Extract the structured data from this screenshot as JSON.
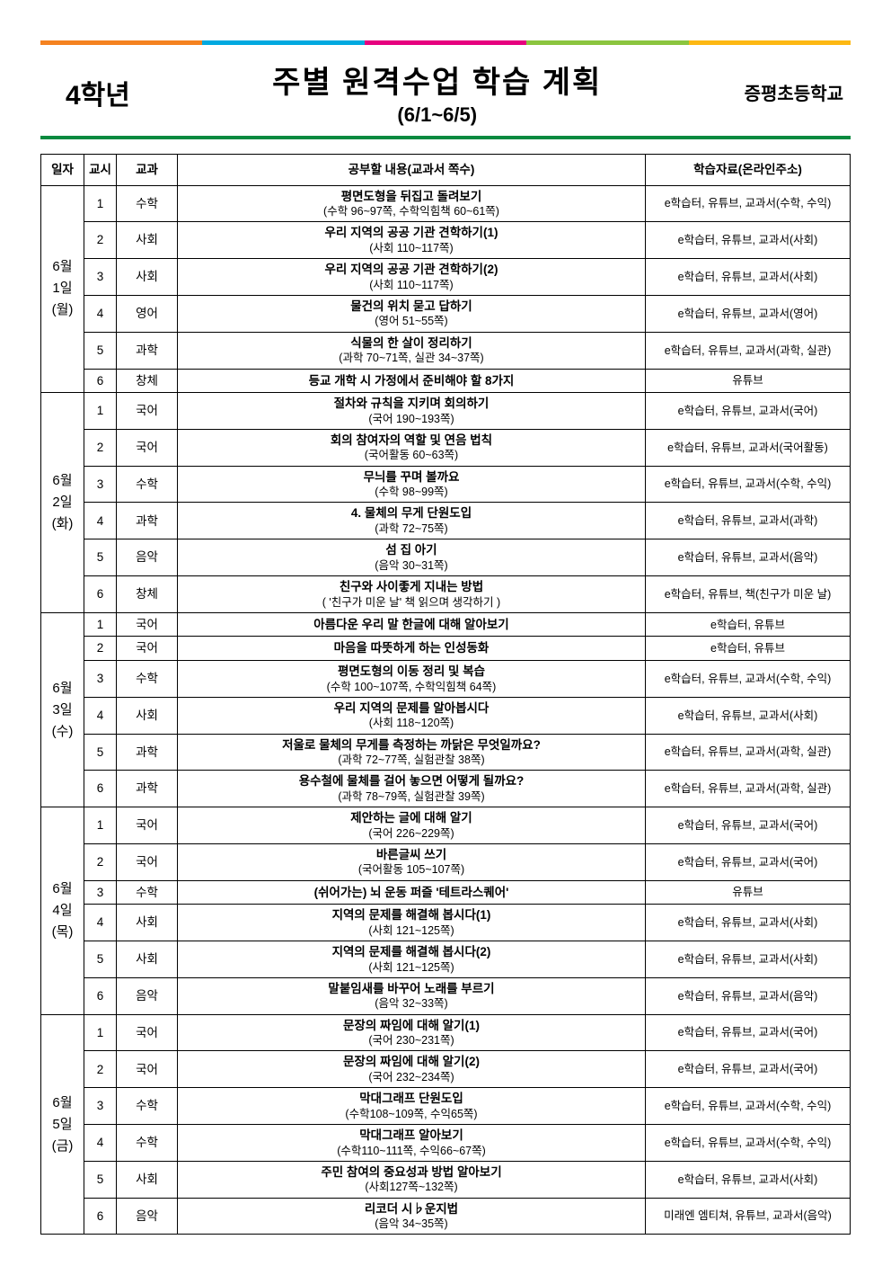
{
  "topbar_colors": [
    "#f58220",
    "#00a9e0",
    "#e6007e",
    "#8bc53f",
    "#fdb813"
  ],
  "divider_color": "#088a3f",
  "grade": "4학년",
  "title": "주별 원격수업 학습 계획",
  "date_range": "(6/1~6/5)",
  "school": "증평초등학교",
  "headers": {
    "date": "일자",
    "period": "교시",
    "subject": "교과",
    "content": "공부할 내용(교과서 쪽수)",
    "resource": "학습자료(온라인주소)"
  },
  "days": [
    {
      "date_lines": [
        "6월",
        "1일",
        "(월)"
      ],
      "rows": [
        {
          "period": "1",
          "subj": "수학",
          "main": "평면도형을 뒤집고 돌려보기",
          "sub": "(수학 96~97쪽, 수학익힘책 60~61쪽)",
          "res": "e학습터, 유튜브, 교과서(수학, 수익)"
        },
        {
          "period": "2",
          "subj": "사회",
          "main": "우리 지역의 공공 기관 견학하기(1)",
          "sub": "(사회 110~117쪽)",
          "res": "e학습터, 유튜브, 교과서(사회)"
        },
        {
          "period": "3",
          "subj": "사회",
          "main": "우리 지역의 공공 기관 견학하기(2)",
          "sub": "(사회 110~117쪽)",
          "res": "e학습터, 유튜브, 교과서(사회)"
        },
        {
          "period": "4",
          "subj": "영어",
          "main": "물건의 위치 묻고 답하기",
          "sub": "(영어 51~55쪽)",
          "res": "e학습터, 유튜브, 교과서(영어)"
        },
        {
          "period": "5",
          "subj": "과학",
          "main": "식물의 한 살이 정리하기",
          "sub": "(과학 70~71쪽, 실관 34~37쪽)",
          "res": "e학습터, 유튜브, 교과서(과학, 실관)"
        },
        {
          "period": "6",
          "subj": "창체",
          "main": "등교 개학 시 가정에서 준비해야 할 8가지",
          "sub": "",
          "res": "유튜브"
        }
      ]
    },
    {
      "date_lines": [
        "6월",
        "2일",
        "(화)"
      ],
      "rows": [
        {
          "period": "1",
          "subj": "국어",
          "main": "절차와 규칙을 지키며 회의하기",
          "sub": "(국어 190~193쪽)",
          "res": "e학습터, 유튜브, 교과서(국어)"
        },
        {
          "period": "2",
          "subj": "국어",
          "main": "회의 참여자의 역할 및 연음 법칙",
          "sub": "(국어활동 60~63쪽)",
          "res": "e학습터, 유튜브, 교과서(국어활동)"
        },
        {
          "period": "3",
          "subj": "수학",
          "main": "무늬를 꾸며 볼까요",
          "sub": "(수학 98~99쪽)",
          "res": "e학습터, 유튜브, 교과서(수학, 수익)"
        },
        {
          "period": "4",
          "subj": "과학",
          "main": "4. 물체의 무게 단원도입",
          "sub": "(과학 72~75쪽)",
          "res": "e학습터, 유튜브, 교과서(과학)"
        },
        {
          "period": "5",
          "subj": "음악",
          "main": "섬 집 아기",
          "sub": "(음악 30~31쪽)",
          "res": "e학습터, 유튜브, 교과서(음악)"
        },
        {
          "period": "6",
          "subj": "창체",
          "main": "친구와 사이좋게 지내는 방법",
          "sub": "( '친구가 미운 날' 책 읽으며 생각하기 )",
          "res": "e학습터, 유튜브, 책(친구가 미운 날)"
        }
      ]
    },
    {
      "date_lines": [
        "6월",
        "3일",
        "(수)"
      ],
      "rows": [
        {
          "period": "1",
          "subj": "국어",
          "main": "아름다운 우리 말 한글에 대해 알아보기",
          "sub": "",
          "res": "e학습터, 유튜브"
        },
        {
          "period": "2",
          "subj": "국어",
          "main": "마음을 따뜻하게 하는 인성동화",
          "sub": "",
          "res": "e학습터, 유튜브"
        },
        {
          "period": "3",
          "subj": "수학",
          "main": "평면도형의 이동 정리 및 복습",
          "sub": "(수학 100~107쪽, 수학익힘책 64쪽)",
          "res": "e학습터, 유튜브, 교과서(수학, 수익)"
        },
        {
          "period": "4",
          "subj": "사회",
          "main": "우리 지역의 문제를 알아봅시다",
          "sub": "(사회 118~120쪽)",
          "res": "e학습터, 유튜브, 교과서(사회)"
        },
        {
          "period": "5",
          "subj": "과학",
          "main": "저울로 물체의 무게를 측정하는 까닭은 무엇일까요?",
          "sub": "(과학 72~77쪽, 실험관찰 38쪽)",
          "res": "e학습터, 유튜브, 교과서(과학, 실관)"
        },
        {
          "period": "6",
          "subj": "과학",
          "main": "용수철에 물체를 걸어 놓으면 어떻게 될까요?",
          "sub": "(과학 78~79쪽, 실험관찰 39쪽)",
          "res": "e학습터, 유튜브, 교과서(과학, 실관)"
        }
      ]
    },
    {
      "date_lines": [
        "6월",
        "4일",
        "(목)"
      ],
      "rows": [
        {
          "period": "1",
          "subj": "국어",
          "main": "제안하는 글에 대해 알기",
          "sub": "(국어 226~229쪽)",
          "res": "e학습터, 유튜브, 교과서(국어)"
        },
        {
          "period": "2",
          "subj": "국어",
          "main": "바른글씨 쓰기",
          "sub": "(국어활동 105~107쪽)",
          "res": "e학습터, 유튜브, 교과서(국어)"
        },
        {
          "period": "3",
          "subj": "수학",
          "main": "(쉬어가는) 뇌 운동 퍼즐 '테트라스퀘어'",
          "sub": "",
          "res": "유튜브"
        },
        {
          "period": "4",
          "subj": "사회",
          "main": "지역의 문제를 해결해 봅시다(1)",
          "sub": "(사회 121~125쪽)",
          "res": "e학습터, 유튜브, 교과서(사회)"
        },
        {
          "period": "5",
          "subj": "사회",
          "main": "지역의 문제를 해결해 봅시다(2)",
          "sub": "(사회 121~125쪽)",
          "res": "e학습터, 유튜브, 교과서(사회)"
        },
        {
          "period": "6",
          "subj": "음악",
          "main": "말붙임새를 바꾸어 노래를 부르기",
          "sub": "(음악 32~33쪽)",
          "res": "e학습터, 유튜브, 교과서(음악)"
        }
      ]
    },
    {
      "date_lines": [
        "6월",
        "5일",
        "(금)"
      ],
      "rows": [
        {
          "period": "1",
          "subj": "국어",
          "main": "문장의 짜임에 대해 알기(1)",
          "sub": "(국어 230~231쪽)",
          "res": "e학습터, 유튜브, 교과서(국어)"
        },
        {
          "period": "2",
          "subj": "국어",
          "main": "문장의 짜임에 대해 알기(2)",
          "sub": "(국어 232~234쪽)",
          "res": "e학습터, 유튜브, 교과서(국어)"
        },
        {
          "period": "3",
          "subj": "수학",
          "main": "막대그래프 단원도입",
          "sub": "(수학108~109쪽, 수익65쪽)",
          "res": "e학습터, 유튜브, 교과서(수학, 수익)"
        },
        {
          "period": "4",
          "subj": "수학",
          "main": "막대그래프 알아보기",
          "sub": "(수학110~111쪽, 수익66~67쪽)",
          "res": "e학습터, 유튜브, 교과서(수학, 수익)"
        },
        {
          "period": "5",
          "subj": "사회",
          "main": "주민 참여의 중요성과 방법 알아보기",
          "sub": "(사회127쪽~132쪽)",
          "res": "e학습터, 유튜브, 교과서(사회)"
        },
        {
          "period": "6",
          "subj": "음악",
          "main": "리코더 시♭운지법",
          "sub": "(음악 34~35쪽)",
          "res": "미래엔 엠티쳐, 유튜브, 교과서(음악)"
        }
      ]
    }
  ]
}
